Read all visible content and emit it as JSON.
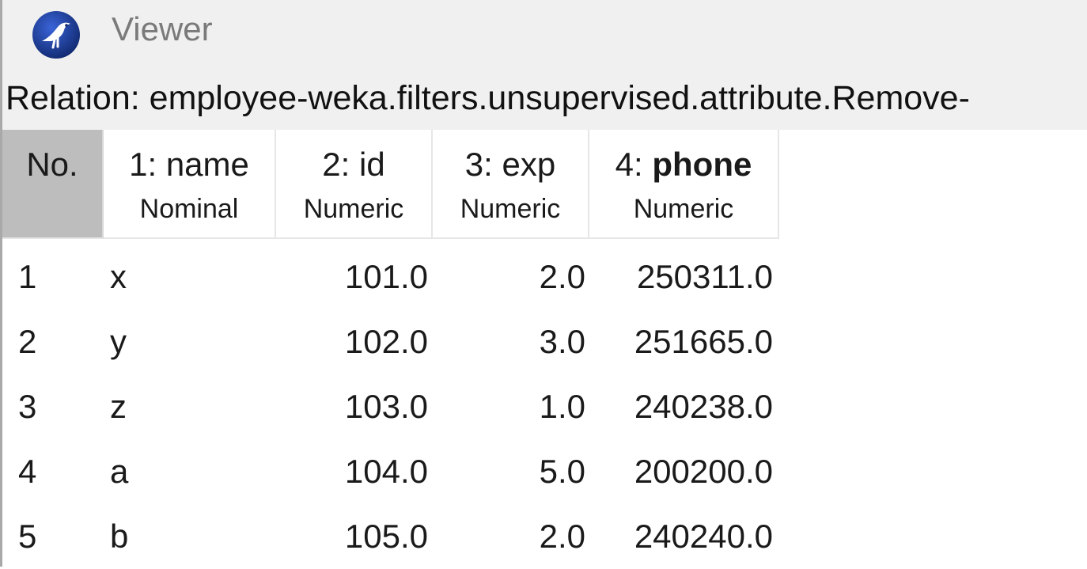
{
  "window": {
    "title": "Viewer",
    "icon": "weka-bird-icon"
  },
  "relation": {
    "text": "Relation: employee-weka.filters.unsupervised.attribute.Remove-"
  },
  "table": {
    "columns": [
      {
        "index": "No.",
        "name": "",
        "type": ""
      },
      {
        "index": "1:",
        "name": "name",
        "type": "Nominal"
      },
      {
        "index": "2:",
        "name": "id",
        "type": "Numeric"
      },
      {
        "index": "3:",
        "name": "exp",
        "type": "Numeric"
      },
      {
        "index": "4:",
        "name": "phone",
        "type": "Numeric"
      }
    ],
    "rows": [
      {
        "no": "1",
        "name": "x",
        "id": "101.0",
        "exp": "2.0",
        "phone": "250311.0"
      },
      {
        "no": "2",
        "name": "y",
        "id": "102.0",
        "exp": "3.0",
        "phone": "251665.0"
      },
      {
        "no": "3",
        "name": "z",
        "id": "103.0",
        "exp": "1.0",
        "phone": "240238.0"
      },
      {
        "no": "4",
        "name": "a",
        "id": "104.0",
        "exp": "5.0",
        "phone": "200200.0"
      },
      {
        "no": "5",
        "name": "b",
        "id": "105.0",
        "exp": "2.0",
        "phone": "240240.0"
      }
    ]
  },
  "colors": {
    "titlebar_bg": "#f0f0f0",
    "no_header_bg": "#bdbdbd",
    "icon_blue": "#1a3f9c"
  }
}
